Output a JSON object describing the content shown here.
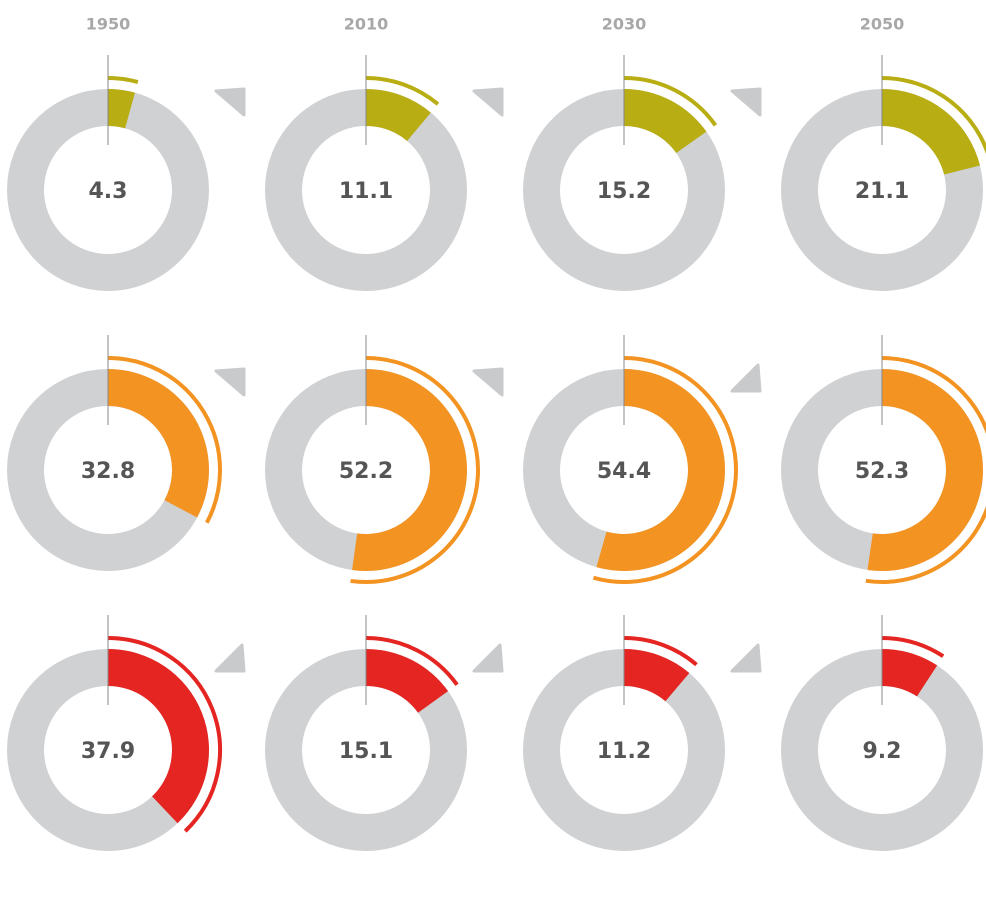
{
  "chart_data": {
    "type": "donut-grid",
    "categories": [
      "1950",
      "2010",
      "2030",
      "2050"
    ],
    "series": [
      {
        "color": "#b8ad12",
        "values": [
          4.3,
          11.1,
          15.2,
          21.1
        ]
      },
      {
        "color": "#f39322",
        "values": [
          32.8,
          52.2,
          54.4,
          52.3
        ]
      },
      {
        "color": "#e42521",
        "values": [
          37.9,
          15.1,
          11.2,
          9.2
        ]
      }
    ],
    "ylim": [
      0,
      100
    ]
  }
}
